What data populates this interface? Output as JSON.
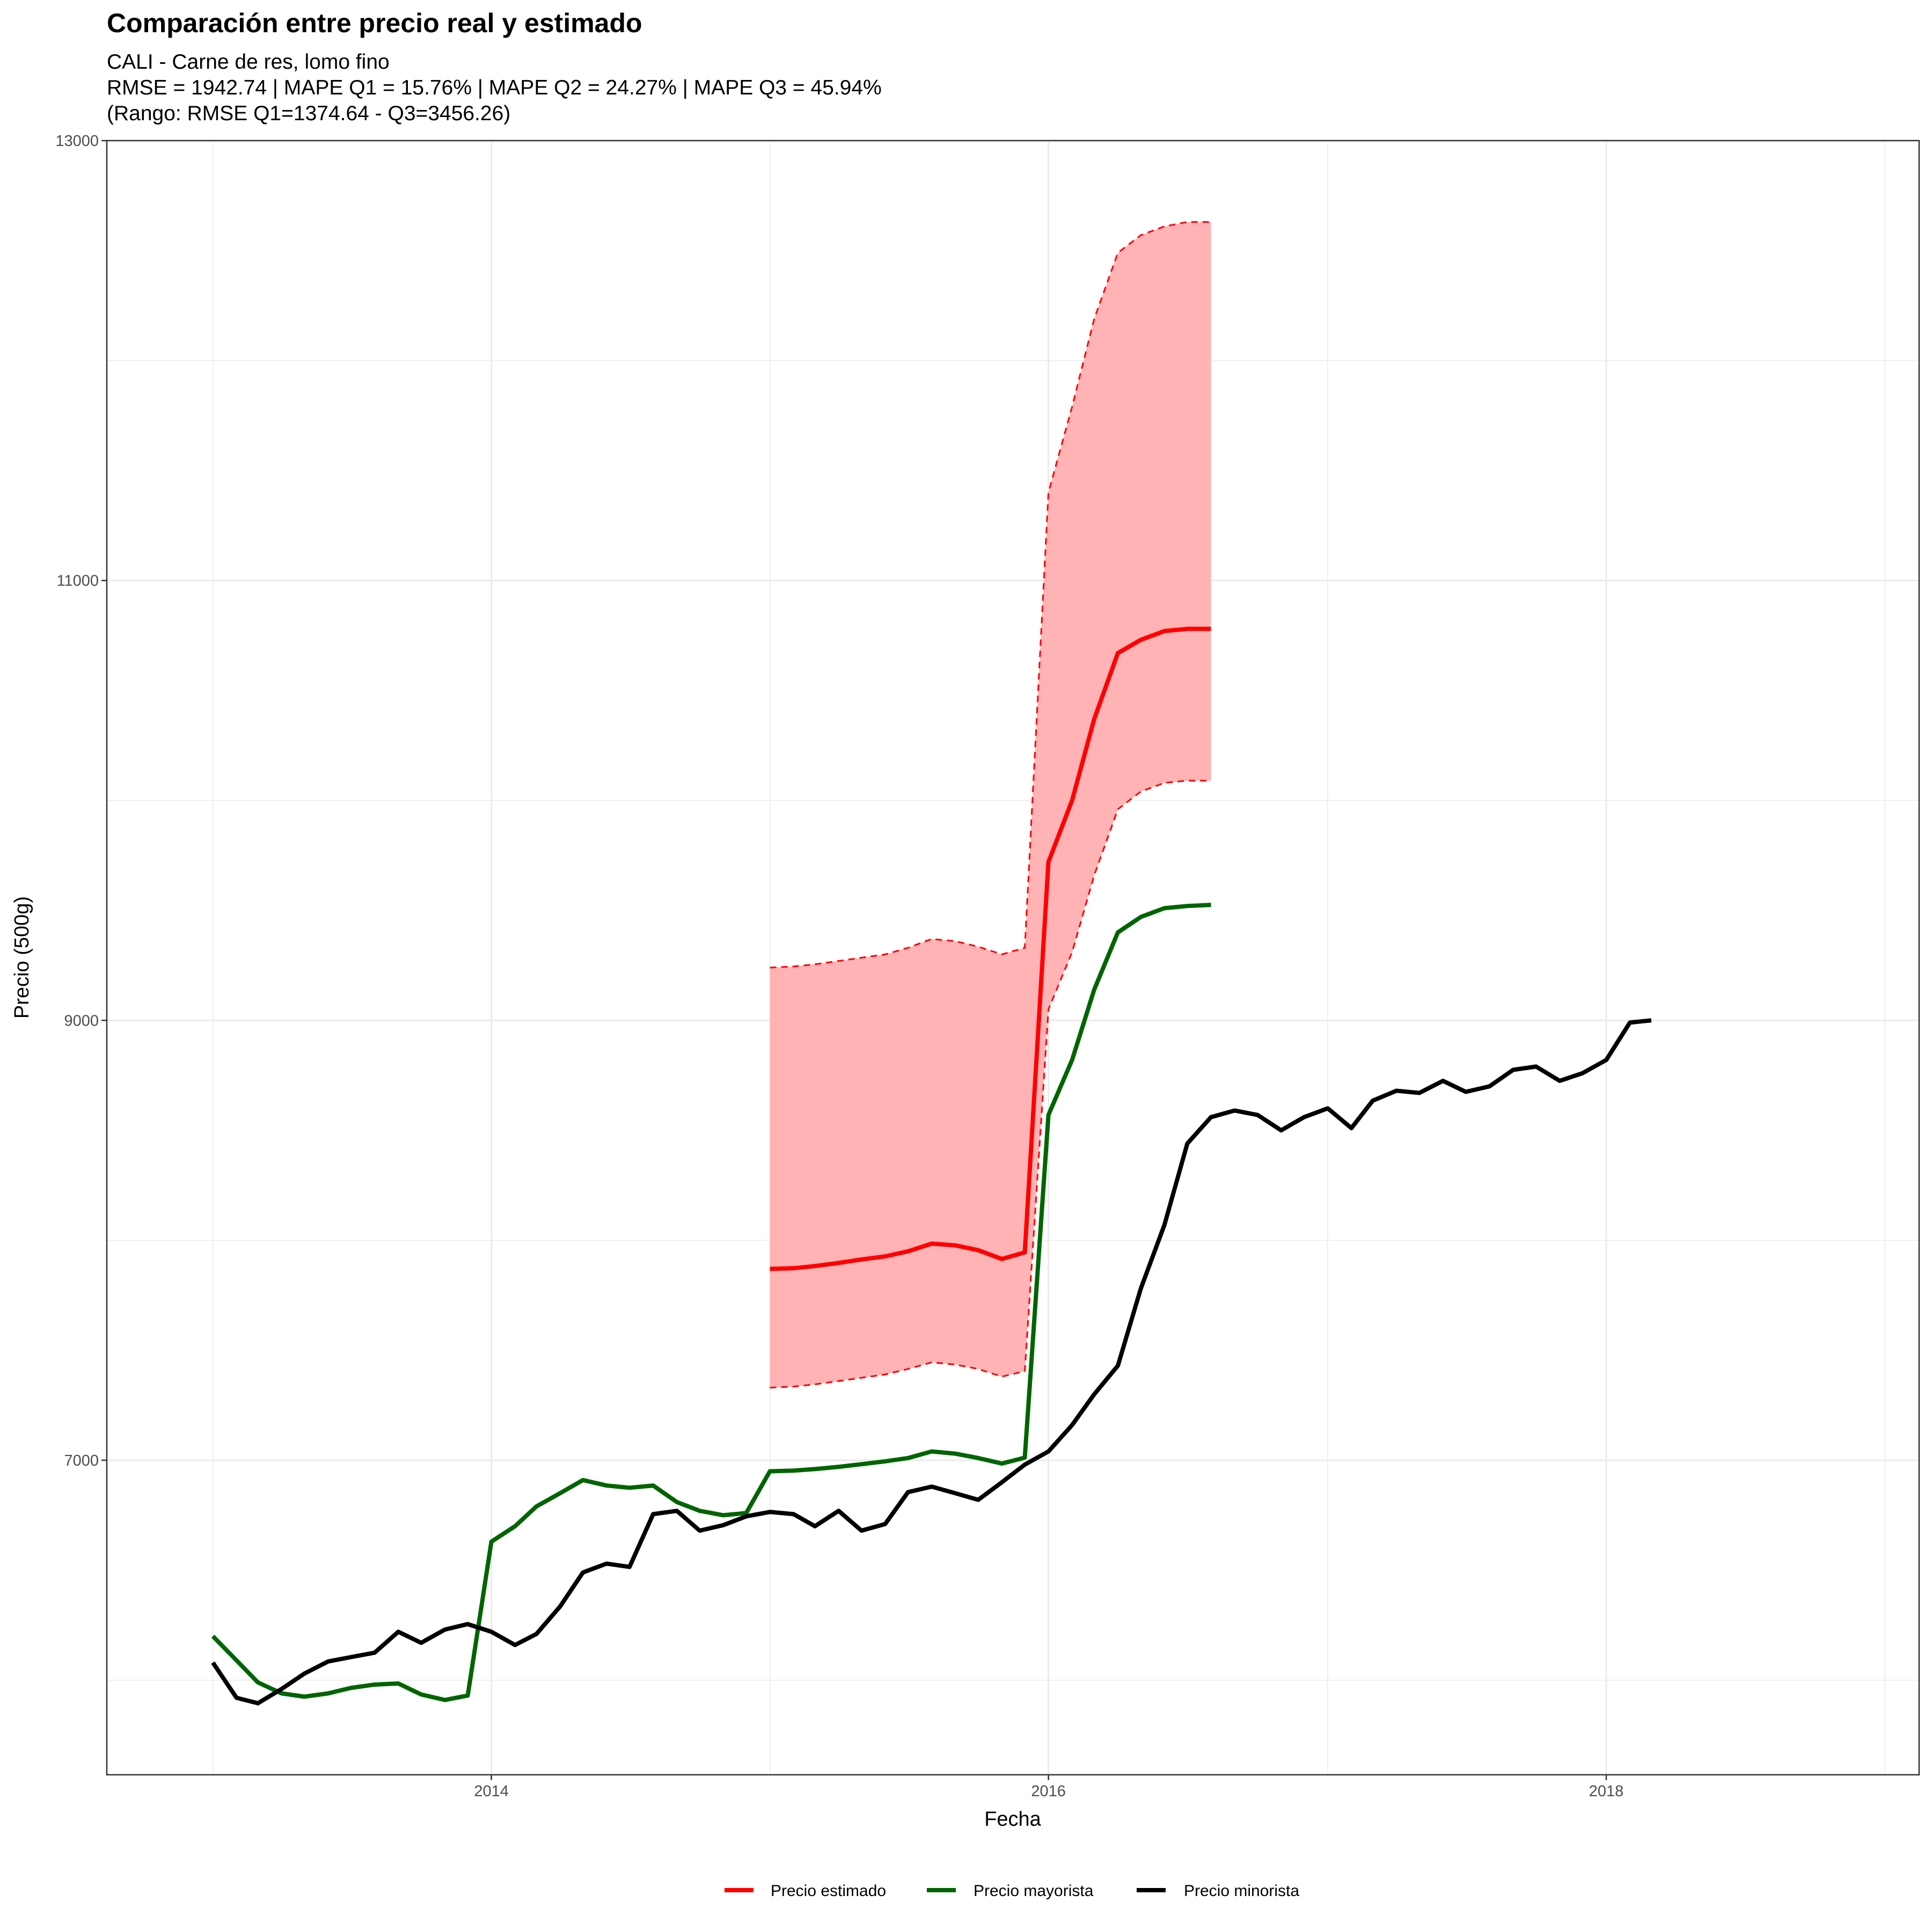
{
  "chart_data": {
    "type": "line",
    "title": "Comparación entre precio real y estimado",
    "subtitle_lines": [
      "CALI - Carne de res, lomo fino",
      "RMSE = 1942.74 | MAPE Q1 = 15.76% | MAPE Q2 = 24.27% | MAPE Q3 = 45.94%",
      "(Rango: RMSE Q1=1374.64 - Q3=3456.26)"
    ],
    "xlabel": "Fecha",
    "ylabel": "Precio (500g)",
    "xlim": [
      "2012-08-15",
      "2019-02-15"
    ],
    "ylim": [
      5570,
      13000
    ],
    "x_ticks": [
      {
        "date": "2014-01-01",
        "label": "2014"
      },
      {
        "date": "2016-01-01",
        "label": "2016"
      },
      {
        "date": "2018-01-01",
        "label": "2018"
      }
    ],
    "x_minor_grid": [
      "2013-01-01",
      "2015-01-01",
      "2017-01-01",
      "2019-01-01"
    ],
    "y_ticks": [
      {
        "value": 7000,
        "label": "7000"
      },
      {
        "value": 9000,
        "label": "9000"
      },
      {
        "value": 11000,
        "label": "11000"
      },
      {
        "value": 13000,
        "label": "13000"
      }
    ],
    "y_minor_grid": [
      6000,
      8000,
      10000,
      12000
    ],
    "grid": true,
    "legend_position": "bottom",
    "band": {
      "color": "#ff0000",
      "fill": "#ffb3b5",
      "x": [
        "2015-01",
        "2015-02",
        "2015-03",
        "2015-04",
        "2015-05",
        "2015-06",
        "2015-07",
        "2015-08",
        "2015-09",
        "2015-10",
        "2015-11",
        "2015-12",
        "2016-01",
        "2016-02",
        "2016-03",
        "2016-04",
        "2016-05",
        "2016-06",
        "2016-07",
        "2016-08"
      ],
      "lower": [
        7330,
        7335,
        7345,
        7360,
        7375,
        7390,
        7415,
        7445,
        7435,
        7415,
        7380,
        7405,
        9050,
        9310,
        9660,
        9960,
        10040,
        10080,
        10090,
        10090
      ],
      "upper": [
        9240,
        9245,
        9255,
        9270,
        9285,
        9300,
        9330,
        9370,
        9360,
        9335,
        9300,
        9330,
        11400,
        11790,
        12190,
        12490,
        12570,
        12610,
        12630,
        12630
      ]
    },
    "series": [
      {
        "name": "Precio estimado",
        "color": "#ff0000",
        "x": [
          "2015-01",
          "2015-02",
          "2015-03",
          "2015-04",
          "2015-05",
          "2015-06",
          "2015-07",
          "2015-08",
          "2015-09",
          "2015-10",
          "2015-11",
          "2015-12",
          "2016-01",
          "2016-02",
          "2016-03",
          "2016-04",
          "2016-05",
          "2016-06",
          "2016-07",
          "2016-08"
        ],
        "values": [
          7870,
          7873,
          7883,
          7897,
          7913,
          7927,
          7950,
          7985,
          7977,
          7955,
          7915,
          7945,
          9720,
          10000,
          10370,
          10670,
          10730,
          10770,
          10780,
          10780
        ]
      },
      {
        "name": "Precio mayorista",
        "color": "#006400",
        "x": [
          "2013-01",
          "2013-02",
          "2013-03",
          "2013-04",
          "2013-05",
          "2013-06",
          "2013-07",
          "2013-08",
          "2013-09",
          "2013-10",
          "2013-11",
          "2013-12",
          "2014-01",
          "2014-02",
          "2014-03",
          "2014-04",
          "2014-05",
          "2014-06",
          "2014-07",
          "2014-08",
          "2014-09",
          "2014-10",
          "2014-11",
          "2014-12",
          "2015-01",
          "2015-02",
          "2015-03",
          "2015-04",
          "2015-05",
          "2015-06",
          "2015-07",
          "2015-08",
          "2015-09",
          "2015-10",
          "2015-11",
          "2015-12",
          "2016-01",
          "2016-02",
          "2016-03",
          "2016-04",
          "2016-05",
          "2016-06",
          "2016-07",
          "2016-08"
        ],
        "values": [
          6200,
          6090,
          5990,
          5940,
          5925,
          5940,
          5965,
          5980,
          5985,
          5935,
          5910,
          5930,
          6630,
          6700,
          6790,
          6850,
          6910,
          6885,
          6875,
          6885,
          6810,
          6770,
          6750,
          6760,
          6950,
          6953,
          6960,
          6970,
          6982,
          6995,
          7010,
          7040,
          7030,
          7010,
          6985,
          7012,
          8570,
          8820,
          9140,
          9400,
          9470,
          9510,
          9520,
          9525
        ]
      },
      {
        "name": "Precio minorista",
        "color": "#000000",
        "x": [
          "2013-01",
          "2013-02",
          "2013-03",
          "2013-04",
          "2013-05",
          "2013-06",
          "2013-07",
          "2013-08",
          "2013-09",
          "2013-10",
          "2013-11",
          "2013-12",
          "2014-01",
          "2014-02",
          "2014-03",
          "2014-04",
          "2014-05",
          "2014-06",
          "2014-07",
          "2014-08",
          "2014-09",
          "2014-10",
          "2014-11",
          "2014-12",
          "2015-01",
          "2015-02",
          "2015-03",
          "2015-04",
          "2015-05",
          "2015-06",
          "2015-07",
          "2015-08",
          "2015-09",
          "2015-10",
          "2015-11",
          "2015-12",
          "2016-01",
          "2016-02",
          "2016-03",
          "2016-04",
          "2016-05",
          "2016-06",
          "2016-07",
          "2016-08",
          "2016-09",
          "2016-10",
          "2016-11",
          "2016-12",
          "2017-01",
          "2017-02",
          "2017-03",
          "2017-04",
          "2017-05",
          "2017-06",
          "2017-07",
          "2017-08",
          "2017-09",
          "2017-10",
          "2017-11",
          "2017-12",
          "2018-01",
          "2018-02",
          "2018-03"
        ],
        "values": [
          6080,
          5920,
          5895,
          5960,
          6030,
          6085,
          6105,
          6125,
          6220,
          6170,
          6230,
          6255,
          6220,
          6160,
          6210,
          6335,
          6490,
          6530,
          6515,
          6755,
          6770,
          6680,
          6705,
          6745,
          6765,
          6755,
          6700,
          6770,
          6680,
          6710,
          6855,
          6880,
          6850,
          6820,
          6900,
          6980,
          7040,
          7160,
          7300,
          7430,
          7780,
          8070,
          8440,
          8560,
          8590,
          8570,
          8500,
          8560,
          8600,
          8510,
          8635,
          8680,
          8670,
          8725,
          8675,
          8700,
          8775,
          8790,
          8725,
          8760,
          8820,
          8990,
          9000
        ]
      }
    ]
  }
}
